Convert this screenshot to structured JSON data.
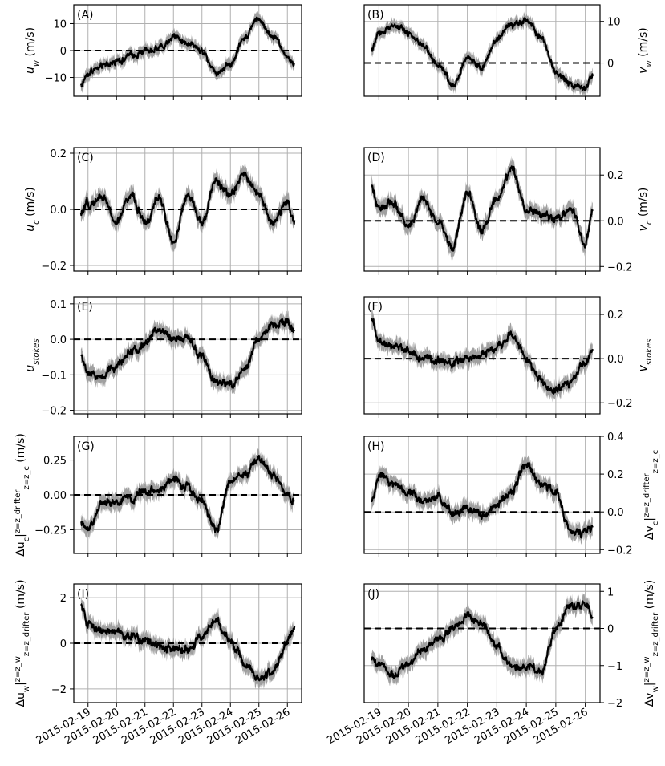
{
  "figure": {
    "date_ticks": [
      "2015-02-19",
      "2015-02-20",
      "2015-02-21",
      "2015-02-22",
      "2015-02-23",
      "2015-02-24",
      "2015-02-25",
      "2015-02-26"
    ],
    "colors": {
      "mean_line": "#000000",
      "spread_band": "#a0a0a0",
      "zero_line": "#000000",
      "grid": "#b0b0b0"
    }
  },
  "chart_data": [
    {
      "panel": "(A)",
      "type": "line",
      "column": "left",
      "row": 0,
      "ylabel": "u_w (m/s)",
      "ylim": [
        -17,
        17
      ],
      "yticks": [
        -10,
        0,
        10
      ],
      "ytick_labels": [
        "−10",
        "0",
        "10"
      ],
      "xlim": [
        "2015-02-18 12:00",
        "2015-02-26 12:00"
      ],
      "grid": true,
      "zero_line": true,
      "series": [
        {
          "x": [
            "2015-02-18 18:00",
            "2015-02-19 00:00",
            "2015-02-19 12:00",
            "2015-02-20 00:00",
            "2015-02-20 12:00",
            "2015-02-21 00:00",
            "2015-02-21 12:00",
            "2015-02-22 00:00",
            "2015-02-22 12:00",
            "2015-02-23 00:00",
            "2015-02-23 12:00",
            "2015-02-24 00:00",
            "2015-02-24 12:00",
            "2015-02-25 00:00",
            "2015-02-25 12:00",
            "2015-02-26 00:00",
            "2015-02-26 06:00"
          ],
          "values": [
            -13,
            -8,
            -6,
            -4,
            -2,
            0,
            1,
            5,
            3,
            0,
            -8,
            -5,
            5,
            12,
            5,
            -2,
            -6
          ]
        }
      ]
    },
    {
      "panel": "(B)",
      "type": "line",
      "column": "right",
      "row": 0,
      "ylabel": "v_w (m/s)",
      "ylim": [
        -8,
        14
      ],
      "yticks": [
        0,
        10
      ],
      "ytick_labels": [
        "0",
        "10"
      ],
      "xlim": [
        "2015-02-18 12:00",
        "2015-02-26 12:00"
      ],
      "grid": true,
      "zero_line": true,
      "series": [
        {
          "x": [
            "2015-02-18 18:00",
            "2015-02-19 00:00",
            "2015-02-19 12:00",
            "2015-02-20 00:00",
            "2015-02-20 12:00",
            "2015-02-21 00:00",
            "2015-02-21 12:00",
            "2015-02-22 00:00",
            "2015-02-22 12:00",
            "2015-02-23 00:00",
            "2015-02-23 12:00",
            "2015-02-24 00:00",
            "2015-02-24 12:00",
            "2015-02-25 00:00",
            "2015-02-25 12:00",
            "2015-02-26 00:00",
            "2015-02-26 06:00"
          ],
          "values": [
            3,
            7,
            9,
            7,
            4,
            0,
            -5,
            1,
            -1,
            6,
            9,
            10,
            6,
            -2,
            -5,
            -6,
            -3
          ]
        }
      ]
    },
    {
      "panel": "(C)",
      "type": "line",
      "column": "left",
      "row": 1,
      "ylabel": "u_c (m/s)",
      "ylim": [
        -0.22,
        0.22
      ],
      "yticks": [
        -0.2,
        0,
        0.2
      ],
      "ytick_labels": [
        "−0.2",
        "0.0",
        "0.2"
      ],
      "xlim": [
        "2015-02-18 12:00",
        "2015-02-26 12:00"
      ],
      "grid": true,
      "zero_line": true,
      "series": [
        {
          "x": [
            "2015-02-18 18:00",
            "2015-02-19 00:00",
            "2015-02-19 12:00",
            "2015-02-20 00:00",
            "2015-02-20 12:00",
            "2015-02-21 00:00",
            "2015-02-21 12:00",
            "2015-02-22 00:00",
            "2015-02-22 12:00",
            "2015-02-23 00:00",
            "2015-02-23 12:00",
            "2015-02-24 00:00",
            "2015-02-24 12:00",
            "2015-02-25 00:00",
            "2015-02-25 12:00",
            "2015-02-26 00:00",
            "2015-02-26 06:00"
          ],
          "values": [
            -0.02,
            0.02,
            0.05,
            -0.05,
            0.05,
            -0.05,
            0.04,
            -0.12,
            0.05,
            -0.05,
            0.1,
            0.05,
            0.12,
            0.06,
            -0.05,
            0.04,
            -0.06
          ]
        }
      ]
    },
    {
      "panel": "(D)",
      "type": "line",
      "column": "right",
      "row": 1,
      "ylabel": "v_c (m/s)",
      "ylim": [
        -0.22,
        0.32
      ],
      "yticks": [
        -0.2,
        0,
        0.2
      ],
      "ytick_labels": [
        "−0.2",
        "0.0",
        "0.2"
      ],
      "xlim": [
        "2015-02-18 12:00",
        "2015-02-26 12:00"
      ],
      "grid": true,
      "zero_line": true,
      "series": [
        {
          "x": [
            "2015-02-18 18:00",
            "2015-02-19 00:00",
            "2015-02-19 12:00",
            "2015-02-20 00:00",
            "2015-02-20 12:00",
            "2015-02-21 00:00",
            "2015-02-21 12:00",
            "2015-02-22 00:00",
            "2015-02-22 12:00",
            "2015-02-23 00:00",
            "2015-02-23 12:00",
            "2015-02-24 00:00",
            "2015-02-24 12:00",
            "2015-02-25 00:00",
            "2015-02-25 12:00",
            "2015-02-26 00:00",
            "2015-02-26 06:00"
          ],
          "values": [
            0.15,
            0.05,
            0.08,
            -0.02,
            0.1,
            0.0,
            -0.12,
            0.12,
            -0.05,
            0.1,
            0.22,
            0.05,
            0.02,
            0.0,
            0.05,
            -0.1,
            0.05
          ]
        }
      ]
    },
    {
      "panel": "(E)",
      "type": "line",
      "column": "left",
      "row": 2,
      "ylabel": "u_stokes",
      "ylim": [
        -0.21,
        0.12
      ],
      "yticks": [
        -0.2,
        -0.1,
        0,
        0.1
      ],
      "ytick_labels": [
        "−0.2",
        "−0.1",
        "0.0",
        "0.1"
      ],
      "xlim": [
        "2015-02-18 12:00",
        "2015-02-26 12:00"
      ],
      "grid": true,
      "zero_line": true,
      "series": [
        {
          "x": [
            "2015-02-18 18:00",
            "2015-02-19 00:00",
            "2015-02-19 12:00",
            "2015-02-20 00:00",
            "2015-02-20 12:00",
            "2015-02-21 00:00",
            "2015-02-21 12:00",
            "2015-02-22 00:00",
            "2015-02-22 12:00",
            "2015-02-23 00:00",
            "2015-02-23 12:00",
            "2015-02-24 00:00",
            "2015-02-24 12:00",
            "2015-02-25 00:00",
            "2015-02-25 12:00",
            "2015-02-26 00:00",
            "2015-02-26 06:00"
          ],
          "values": [
            -0.05,
            -0.1,
            -0.1,
            -0.07,
            -0.03,
            -0.01,
            0.03,
            0.0,
            0.0,
            -0.05,
            -0.12,
            -0.13,
            -0.08,
            0.0,
            0.04,
            0.05,
            0.03
          ]
        }
      ]
    },
    {
      "panel": "(F)",
      "type": "line",
      "column": "right",
      "row": 2,
      "ylabel": "v_stokes",
      "ylim": [
        -0.25,
        0.28
      ],
      "yticks": [
        -0.2,
        0,
        0.2
      ],
      "ytick_labels": [
        "−0.2",
        "0.0",
        "0.2"
      ],
      "xlim": [
        "2015-02-18 12:00",
        "2015-02-26 12:00"
      ],
      "grid": true,
      "zero_line": true,
      "series": [
        {
          "x": [
            "2015-02-18 18:00",
            "2015-02-19 00:00",
            "2015-02-19 12:00",
            "2015-02-20 00:00",
            "2015-02-20 12:00",
            "2015-02-21 00:00",
            "2015-02-21 12:00",
            "2015-02-22 00:00",
            "2015-02-22 12:00",
            "2015-02-23 00:00",
            "2015-02-23 12:00",
            "2015-02-24 00:00",
            "2015-02-24 12:00",
            "2015-02-25 00:00",
            "2015-02-25 12:00",
            "2015-02-26 00:00",
            "2015-02-26 06:00"
          ],
          "values": [
            0.18,
            0.08,
            0.06,
            0.04,
            0.0,
            -0.01,
            -0.02,
            0.0,
            0.02,
            0.04,
            0.11,
            0.0,
            -0.1,
            -0.15,
            -0.1,
            -0.02,
            0.05
          ]
        }
      ]
    },
    {
      "panel": "(G)",
      "type": "line",
      "column": "left",
      "row": 3,
      "ylabel": "Δu_c|z=z_drifter z=z_c (m/s)",
      "ylim": [
        -0.42,
        0.42
      ],
      "yticks": [
        -0.25,
        0,
        0.25
      ],
      "ytick_labels": [
        "−0.25",
        "0.00",
        "0.25"
      ],
      "xlim": [
        "2015-02-18 12:00",
        "2015-02-26 12:00"
      ],
      "grid": true,
      "zero_line": true,
      "series": [
        {
          "x": [
            "2015-02-18 18:00",
            "2015-02-19 00:00",
            "2015-02-19 12:00",
            "2015-02-20 00:00",
            "2015-02-20 12:00",
            "2015-02-21 00:00",
            "2015-02-21 12:00",
            "2015-02-22 00:00",
            "2015-02-22 12:00",
            "2015-02-23 00:00",
            "2015-02-23 12:00",
            "2015-02-24 00:00",
            "2015-02-24 12:00",
            "2015-02-25 00:00",
            "2015-02-25 12:00",
            "2015-02-26 00:00",
            "2015-02-26 06:00"
          ],
          "values": [
            -0.22,
            -0.25,
            -0.05,
            -0.05,
            -0.02,
            0.02,
            0.05,
            0.1,
            0.05,
            -0.05,
            -0.25,
            0.1,
            0.15,
            0.25,
            0.15,
            0.0,
            -0.05
          ]
        }
      ]
    },
    {
      "panel": "(H)",
      "type": "line",
      "column": "right",
      "row": 3,
      "ylabel": "Δv_c|z=z_drifter z=z_c",
      "ylim": [
        -0.22,
        0.4
      ],
      "yticks": [
        -0.2,
        0,
        0.2,
        0.4
      ],
      "ytick_labels": [
        "−0.2",
        "0.0",
        "0.2",
        "0.4"
      ],
      "xlim": [
        "2015-02-18 12:00",
        "2015-02-26 12:00"
      ],
      "grid": true,
      "zero_line": true,
      "series": [
        {
          "x": [
            "2015-02-18 18:00",
            "2015-02-19 00:00",
            "2015-02-19 12:00",
            "2015-02-20 00:00",
            "2015-02-20 12:00",
            "2015-02-21 00:00",
            "2015-02-21 12:00",
            "2015-02-22 00:00",
            "2015-02-22 12:00",
            "2015-02-23 00:00",
            "2015-02-23 12:00",
            "2015-02-24 00:00",
            "2015-02-24 12:00",
            "2015-02-25 00:00",
            "2015-02-25 12:00",
            "2015-02-26 00:00",
            "2015-02-26 06:00"
          ],
          "values": [
            0.05,
            0.2,
            0.15,
            0.1,
            0.05,
            0.08,
            0.0,
            0.02,
            -0.02,
            0.05,
            0.1,
            0.25,
            0.15,
            0.1,
            -0.1,
            -0.12,
            -0.08
          ]
        }
      ]
    },
    {
      "panel": "(I)",
      "type": "line",
      "column": "left",
      "row": 4,
      "ylabel": "Δu_w|z=z_w z=z_drifter (m/s)",
      "ylim": [
        -2.6,
        2.6
      ],
      "yticks": [
        -2,
        0,
        2
      ],
      "ytick_labels": [
        "−2",
        "0",
        "2"
      ],
      "xlim": [
        "2015-02-18 12:00",
        "2015-02-26 12:00"
      ],
      "grid": true,
      "zero_line": true,
      "series": [
        {
          "x": [
            "2015-02-18 18:00",
            "2015-02-19 00:00",
            "2015-02-19 12:00",
            "2015-02-20 00:00",
            "2015-02-20 12:00",
            "2015-02-21 00:00",
            "2015-02-21 12:00",
            "2015-02-22 00:00",
            "2015-02-22 12:00",
            "2015-02-23 00:00",
            "2015-02-23 12:00",
            "2015-02-24 00:00",
            "2015-02-24 12:00",
            "2015-02-25 00:00",
            "2015-02-25 12:00",
            "2015-02-26 00:00",
            "2015-02-26 06:00"
          ],
          "values": [
            1.8,
            0.9,
            0.6,
            0.5,
            0.3,
            0.1,
            -0.1,
            -0.3,
            -0.2,
            0.3,
            1.0,
            0.0,
            -0.8,
            -1.5,
            -1.2,
            0.0,
            0.6
          ]
        }
      ]
    },
    {
      "panel": "(J)",
      "type": "line",
      "column": "right",
      "row": 4,
      "ylabel": "Δv_w|z=z_w z=z_drifter (m/s)",
      "ylim": [
        -2.0,
        1.2
      ],
      "yticks": [
        -2,
        -1,
        0,
        1
      ],
      "ytick_labels": [
        "−2",
        "−1",
        "0",
        "1"
      ],
      "xlim": [
        "2015-02-18 12:00",
        "2015-02-26 12:00"
      ],
      "grid": true,
      "zero_line": true,
      "series": [
        {
          "x": [
            "2015-02-18 18:00",
            "2015-02-19 00:00",
            "2015-02-19 12:00",
            "2015-02-20 00:00",
            "2015-02-20 12:00",
            "2015-02-21 00:00",
            "2015-02-21 12:00",
            "2015-02-22 00:00",
            "2015-02-22 12:00",
            "2015-02-23 00:00",
            "2015-02-23 12:00",
            "2015-02-24 00:00",
            "2015-02-24 12:00",
            "2015-02-25 00:00",
            "2015-02-25 12:00",
            "2015-02-26 00:00",
            "2015-02-26 06:00"
          ],
          "values": [
            -0.8,
            -1.0,
            -1.2,
            -0.9,
            -0.6,
            -0.3,
            0.0,
            0.3,
            0.1,
            -0.5,
            -1.0,
            -1.0,
            -1.2,
            0.0,
            0.6,
            0.6,
            0.3
          ]
        }
      ]
    }
  ]
}
